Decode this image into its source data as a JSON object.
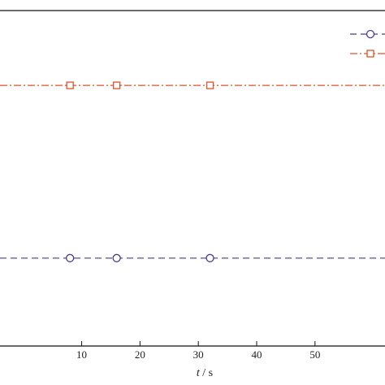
{
  "chart_data": {
    "type": "line",
    "title": "",
    "xlabel_var": "t",
    "xlabel_unit": " / s",
    "ylabel": "",
    "xlim": [
      -4,
      62
    ],
    "ylim": [
      0,
      1
    ],
    "x_ticks": [
      10,
      20,
      30,
      40,
      50
    ],
    "grid": false,
    "legend": "top-right",
    "series": [
      {
        "key": "orange",
        "marker": "square",
        "line_style": "dash-dot",
        "color": "#E0502A",
        "x": [
          8,
          16,
          32
        ],
        "y": [
          0.777,
          0.777,
          0.777
        ]
      },
      {
        "key": "purple",
        "marker": "circle",
        "line_style": "dashed",
        "color": "#4B3A8C",
        "x": [
          8,
          16,
          32
        ],
        "y": [
          0.262,
          0.262,
          0.262
        ]
      }
    ]
  }
}
